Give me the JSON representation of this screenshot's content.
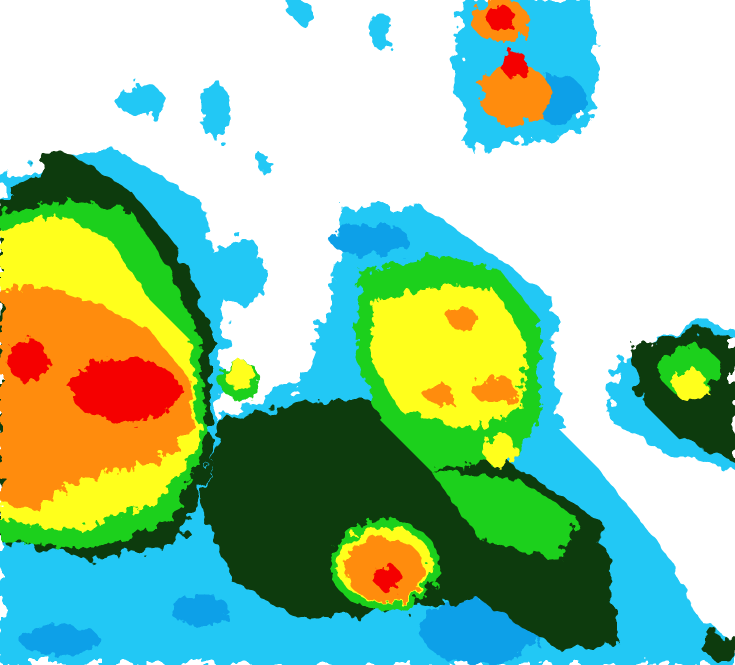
{
  "map": {
    "type": "color-coded precipitation / cloud intensity imagery",
    "palette": {
      "light_blue": "#22c8f5",
      "blue": "#0aa0e8",
      "dark_green": "#0d3b0b",
      "green": "#1ad01a",
      "yellow": "#ffff1e",
      "orange": "#ff8c0a",
      "red": "#f50000"
    }
  }
}
